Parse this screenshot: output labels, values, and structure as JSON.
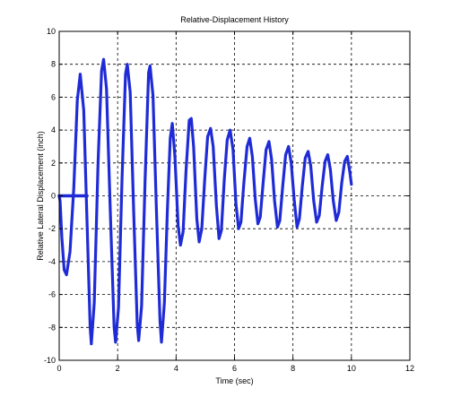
{
  "chart_data": {
    "type": "line",
    "title": "Relative-Displacement History",
    "xlabel": "Time (sec)",
    "ylabel": "Relative Lateral Displacement (inch)",
    "xlim": [
      0,
      12
    ],
    "ylim": [
      -10,
      10
    ],
    "xticks": [
      0,
      2,
      4,
      6,
      8,
      10,
      12
    ],
    "yticks": [
      -10,
      -8,
      -6,
      -4,
      -2,
      0,
      2,
      4,
      6,
      8,
      10
    ],
    "grid": true,
    "grid_style": "dashed",
    "line_color": "#1f2bd6",
    "series": [
      {
        "points": [
          [
            0.0,
            0.0
          ],
          [
            0.03,
            -0.3
          ],
          [
            0.09,
            -2.5
          ],
          [
            0.17,
            -4.5
          ],
          [
            0.25,
            -4.8
          ],
          [
            0.37,
            -3.4
          ],
          [
            0.5,
            0.5
          ],
          [
            0.62,
            5.8
          ],
          [
            0.72,
            7.4
          ],
          [
            0.84,
            5.2
          ],
          [
            0.96,
            -2.0
          ],
          [
            1.06,
            -8.0
          ],
          [
            1.1,
            -9.0
          ],
          [
            1.2,
            -6.5
          ],
          [
            1.33,
            2.0
          ],
          [
            1.45,
            7.6
          ],
          [
            1.52,
            8.3
          ],
          [
            1.62,
            6.5
          ],
          [
            1.75,
            -1.0
          ],
          [
            1.88,
            -8.0
          ],
          [
            1.93,
            -8.9
          ],
          [
            2.03,
            -6.8
          ],
          [
            2.15,
            1.0
          ],
          [
            2.27,
            7.4
          ],
          [
            2.33,
            8.0
          ],
          [
            2.43,
            6.3
          ],
          [
            2.55,
            -1.0
          ],
          [
            2.67,
            -7.8
          ],
          [
            2.72,
            -8.8
          ],
          [
            2.82,
            -6.7
          ],
          [
            2.94,
            1.0
          ],
          [
            3.06,
            7.5
          ],
          [
            3.11,
            7.9
          ],
          [
            3.21,
            6.1
          ],
          [
            3.33,
            -1.0
          ],
          [
            3.45,
            -7.6
          ],
          [
            3.5,
            -8.9
          ],
          [
            3.6,
            -6.5
          ],
          [
            3.7,
            -1.0
          ],
          [
            3.8,
            3.5
          ],
          [
            3.87,
            4.4
          ],
          [
            3.96,
            2.4
          ],
          [
            4.07,
            -1.8
          ],
          [
            4.15,
            -3.0
          ],
          [
            4.24,
            -2.2
          ],
          [
            4.34,
            1.5
          ],
          [
            4.45,
            4.6
          ],
          [
            4.52,
            4.7
          ],
          [
            4.6,
            3.0
          ],
          [
            4.71,
            -1.4
          ],
          [
            4.79,
            -2.8
          ],
          [
            4.88,
            -2.0
          ],
          [
            4.98,
            1.0
          ],
          [
            5.08,
            3.6
          ],
          [
            5.18,
            4.1
          ],
          [
            5.27,
            3.0
          ],
          [
            5.38,
            -0.6
          ],
          [
            5.47,
            -2.6
          ],
          [
            5.55,
            -2.1
          ],
          [
            5.65,
            1.0
          ],
          [
            5.75,
            3.4
          ],
          [
            5.85,
            4.0
          ],
          [
            5.95,
            2.8
          ],
          [
            6.05,
            -0.5
          ],
          [
            6.14,
            -2.0
          ],
          [
            6.22,
            -1.6
          ],
          [
            6.32,
            0.8
          ],
          [
            6.43,
            3.0
          ],
          [
            6.52,
            3.5
          ],
          [
            6.61,
            2.4
          ],
          [
            6.71,
            -0.2
          ],
          [
            6.8,
            -1.7
          ],
          [
            6.88,
            -1.3
          ],
          [
            6.98,
            0.8
          ],
          [
            7.08,
            2.8
          ],
          [
            7.18,
            3.3
          ],
          [
            7.27,
            2.2
          ],
          [
            7.37,
            -0.3
          ],
          [
            7.47,
            -1.9
          ],
          [
            7.55,
            -1.5
          ],
          [
            7.65,
            0.6
          ],
          [
            7.75,
            2.5
          ],
          [
            7.85,
            3.0
          ],
          [
            7.94,
            2.0
          ],
          [
            8.04,
            -0.2
          ],
          [
            8.14,
            -1.9
          ],
          [
            8.22,
            -1.4
          ],
          [
            8.32,
            0.6
          ],
          [
            8.42,
            2.3
          ],
          [
            8.52,
            2.7
          ],
          [
            8.61,
            1.8
          ],
          [
            8.71,
            -0.3
          ],
          [
            8.81,
            -1.6
          ],
          [
            8.9,
            -1.2
          ],
          [
            9.0,
            0.6
          ],
          [
            9.1,
            2.1
          ],
          [
            9.19,
            2.5
          ],
          [
            9.28,
            1.6
          ],
          [
            9.38,
            -0.3
          ],
          [
            9.48,
            -1.5
          ],
          [
            9.57,
            -1.0
          ],
          [
            9.67,
            0.8
          ],
          [
            9.77,
            2.1
          ],
          [
            9.86,
            2.4
          ],
          [
            9.95,
            1.4
          ],
          [
            10.0,
            0.7
          ]
        ]
      },
      {
        "points": [
          [
            0.0,
            0.0
          ],
          [
            0.95,
            0.0
          ]
        ]
      }
    ]
  }
}
